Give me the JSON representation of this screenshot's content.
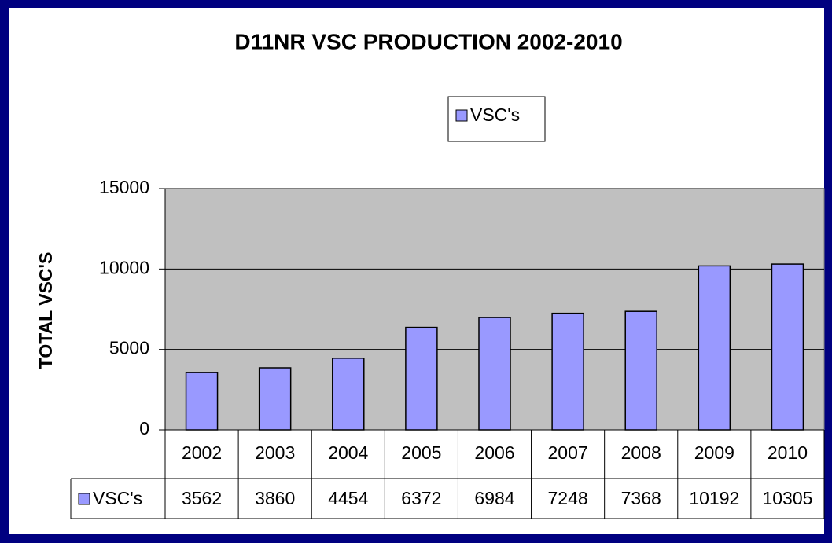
{
  "chart_data": {
    "type": "bar",
    "title": "D11NR VSC PRODUCTION 2002-2010",
    "y_label": "TOTAL VSC'S",
    "categories": [
      "2002",
      "2003",
      "2004",
      "2005",
      "2006",
      "2007",
      "2008",
      "2009",
      "2010"
    ],
    "series": [
      {
        "name": "VSC's",
        "color": "#9999ff",
        "values": [
          3562,
          3860,
          4454,
          6372,
          6984,
          7248,
          7368,
          10192,
          10305
        ]
      }
    ],
    "ylim": [
      0,
      15000
    ],
    "yticks": [
      0,
      5000,
      10000,
      15000
    ],
    "grid": true,
    "legend": "top",
    "data_table": true
  }
}
